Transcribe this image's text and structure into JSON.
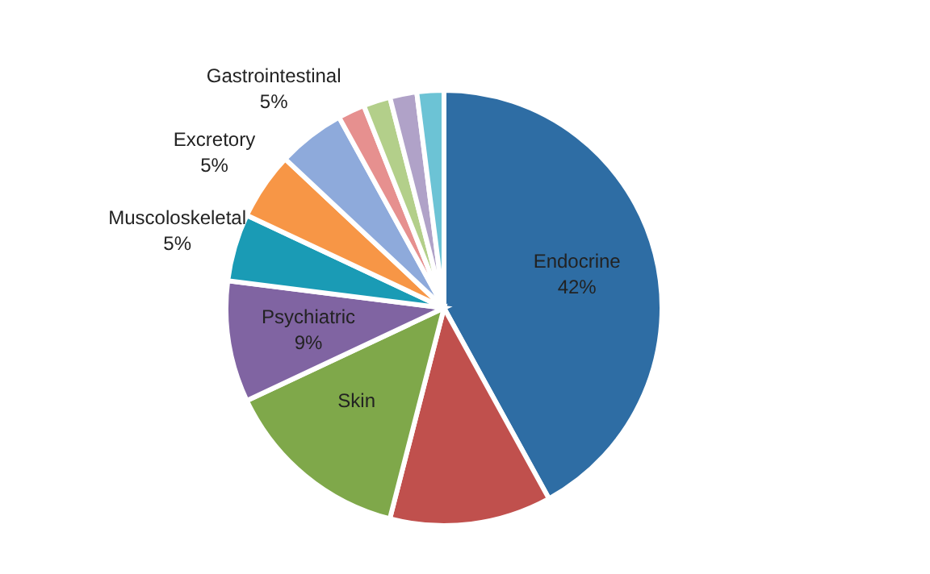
{
  "chart_data": {
    "type": "pie",
    "categories": [
      "Endocrine",
      null,
      "Skin",
      "Psychiatric",
      "Muscoloskeletal",
      "Excretory",
      "Gastrointestinal",
      null,
      null,
      null,
      null
    ],
    "values": [
      42,
      12,
      14,
      9,
      5,
      5,
      5,
      2,
      2,
      2,
      2
    ],
    "value_labels": [
      "42%",
      null,
      null,
      "9%",
      "5%",
      "5%",
      "5%",
      null,
      null,
      null,
      null
    ],
    "colors": [
      "#2e6da4",
      "#c0504d",
      "#7fa84a",
      "#8064a2",
      "#1a9bb5",
      "#f79646",
      "#8eaadb",
      "#e6908f",
      "#b3cf8a",
      "#b0a2c8",
      "#6cc3d5"
    ],
    "legend": false
  }
}
